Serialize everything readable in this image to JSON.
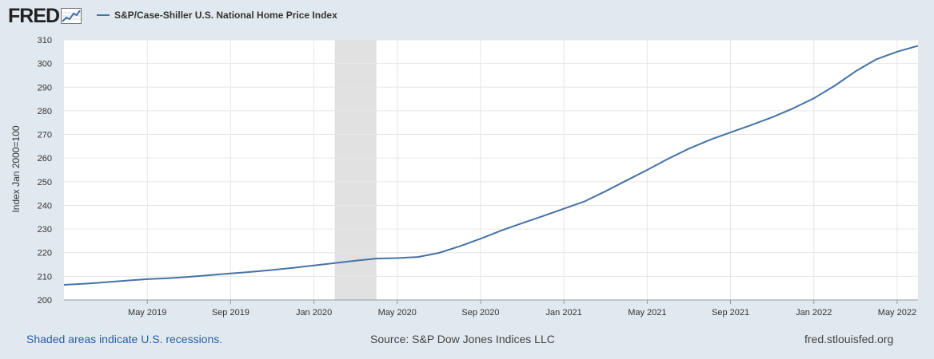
{
  "header": {
    "logo_text": "FRED",
    "series_title": "S&P/Case-Shiller U.S. National Home Price Index",
    "series_color": "#4572a7"
  },
  "footer": {
    "recession_note": "Shaded areas indicate U.S. recessions.",
    "source": "Source: S&P Dow Jones Indices LLC",
    "site": "fred.stlouisfed.org"
  },
  "chart_data": {
    "type": "line",
    "title": "S&P/Case-Shiller U.S. National Home Price Index",
    "ylabel": "Index Jan 2000=100",
    "xlabel": "",
    "ylim": [
      200,
      310
    ],
    "yticks": [
      200,
      210,
      220,
      230,
      240,
      250,
      260,
      270,
      280,
      290,
      300,
      310
    ],
    "xlim": [
      "2019-01",
      "2022-06"
    ],
    "xticks": [
      {
        "label": "May 2019",
        "date": "2019-05"
      },
      {
        "label": "Sep 2019",
        "date": "2019-09"
      },
      {
        "label": "Jan 2020",
        "date": "2020-01"
      },
      {
        "label": "May 2020",
        "date": "2020-05"
      },
      {
        "label": "Sep 2020",
        "date": "2020-09"
      },
      {
        "label": "Jan 2021",
        "date": "2021-01"
      },
      {
        "label": "May 2021",
        "date": "2021-05"
      },
      {
        "label": "Sep 2021",
        "date": "2021-09"
      },
      {
        "label": "Jan 2022",
        "date": "2022-01"
      },
      {
        "label": "May 2022",
        "date": "2022-05"
      }
    ],
    "recessions": [
      {
        "start": "2020-02",
        "end": "2020-04"
      }
    ],
    "grid": true,
    "series": [
      {
        "name": "S&P/Case-Shiller U.S. National Home Price Index",
        "color": "#4572a7",
        "dates": [
          "2019-01",
          "2019-02",
          "2019-03",
          "2019-04",
          "2019-05",
          "2019-06",
          "2019-07",
          "2019-08",
          "2019-09",
          "2019-10",
          "2019-11",
          "2019-12",
          "2020-01",
          "2020-02",
          "2020-03",
          "2020-04",
          "2020-05",
          "2020-06",
          "2020-07",
          "2020-08",
          "2020-09",
          "2020-10",
          "2020-11",
          "2020-12",
          "2021-01",
          "2021-02",
          "2021-03",
          "2021-04",
          "2021-05",
          "2021-06",
          "2021-07",
          "2021-08",
          "2021-09",
          "2021-10",
          "2021-11",
          "2021-12",
          "2022-01",
          "2022-02",
          "2022-03",
          "2022-04",
          "2022-05",
          "2022-06"
        ],
        "values": [
          206.4,
          206.9,
          207.5,
          208.2,
          208.8,
          209.2,
          209.8,
          210.5,
          211.2,
          211.9,
          212.7,
          213.6,
          214.6,
          215.6,
          216.6,
          217.5,
          217.7,
          218.2,
          219.9,
          222.7,
          225.9,
          229.4,
          232.5,
          235.5,
          238.6,
          241.7,
          246.0,
          250.5,
          255.0,
          259.7,
          264.0,
          267.7,
          270.9,
          274.0,
          277.3,
          281.0,
          285.3,
          290.6,
          296.7,
          301.8,
          305.0,
          307.5
        ]
      }
    ]
  }
}
